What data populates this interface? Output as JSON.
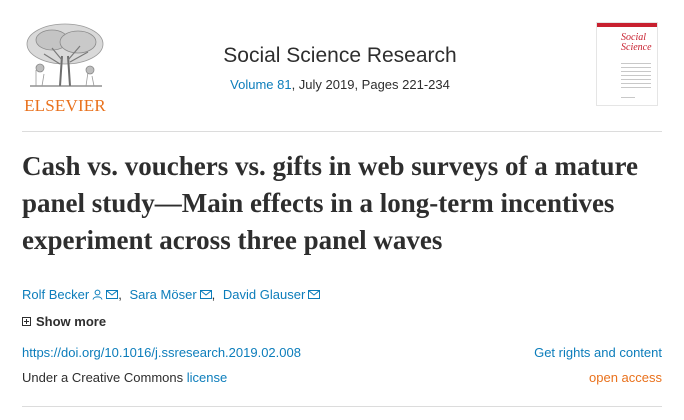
{
  "publisher": {
    "name": "ELSEVIER",
    "logo_icon": "elsevier-tree-icon"
  },
  "journal": {
    "title": "Social Science Research",
    "volume_link": "Volume 81",
    "issue_rest": ", July 2019, Pages 221-234",
    "cover_title": "Social Science"
  },
  "article": {
    "title": "Cash vs. vouchers vs. gifts in web surveys of a mature panel study—Main effects in a long-term incentives experiment across three panel waves",
    "authors": [
      {
        "name": "Rolf Becker",
        "icons": [
          "person-icon",
          "envelope-icon"
        ]
      },
      {
        "name": "Sara Möser",
        "icons": [
          "envelope-icon"
        ]
      },
      {
        "name": "David Glauser",
        "icons": [
          "envelope-icon"
        ]
      }
    ],
    "separator": ",",
    "show_more": "Show more",
    "doi": "https://doi.org/10.1016/j.ssresearch.2019.02.008",
    "rights": "Get rights and content",
    "license_prefix": "Under a Creative Commons ",
    "license_link": "license",
    "open_access": "open access"
  },
  "colors": {
    "link": "#0c7dbb",
    "accent_orange": "#e9711c",
    "text": "#2e2e2e",
    "cover_red": "#c8202f"
  }
}
